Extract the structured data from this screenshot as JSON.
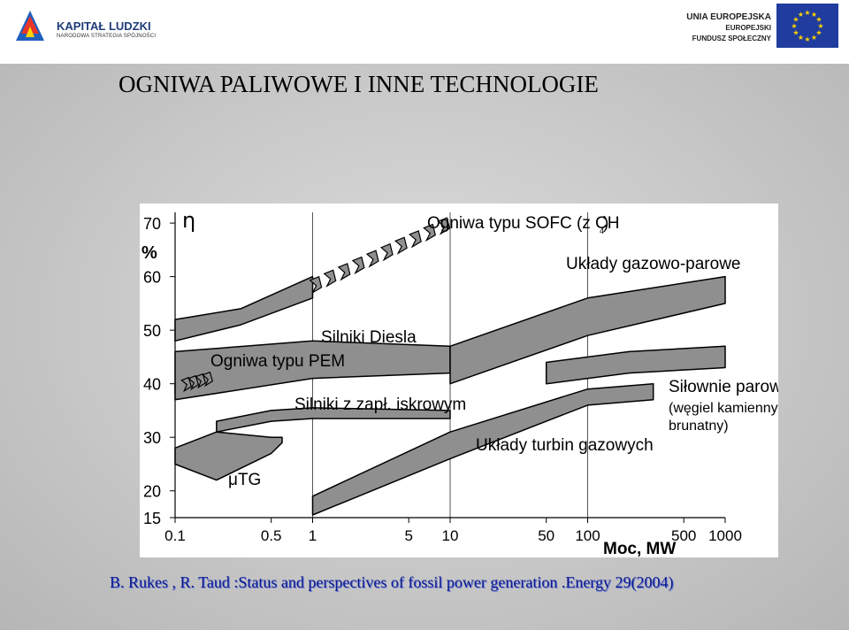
{
  "header": {
    "left_logo_title": "KAPITAŁ LUDZKI",
    "left_logo_subtitle": "NARODOWA STRATEGIA SPÓJNOŚCI",
    "right_logo_line1": "UNIA EUROPEJSKA",
    "right_logo_line2": "EUROPEJSKI",
    "right_logo_line3": "FUNDUSZ SPOŁECZNY"
  },
  "slide": {
    "title": "OGNIWA PALIWOWE I INNE TECHNOLOGIE",
    "citation": "B. Rukes , R. Taud :Status and perspectives of fossil power generation .Energy 29(2004)"
  },
  "colors": {
    "band_fill": "#8f8f8f",
    "band_stroke": "#000000",
    "eu_flag": "#1f3c9e",
    "eu_star": "#ffd200",
    "citation_text": "#0b1a8a"
  },
  "chart_data": {
    "type": "area",
    "title": "",
    "ylabel": "η",
    "ylabel_unit": "%",
    "xlabel": "Moc, MW",
    "x_scale": "log",
    "xlim": [
      0.1,
      1000
    ],
    "ylim": [
      15,
      72
    ],
    "x_ticks": [
      0.1,
      0.5,
      1,
      5,
      10,
      50,
      100,
      500,
      1000
    ],
    "x_tick_labels": [
      "0.1",
      "0.5",
      "1",
      "5",
      "10",
      "50",
      "100",
      "500",
      "1000"
    ],
    "y_ticks": [
      15,
      20,
      30,
      40,
      50,
      60,
      70
    ],
    "y_tick_labels": [
      "15",
      "20",
      "30",
      "40",
      "50",
      "60",
      "70"
    ],
    "grid": "vertical lines at 1, 10, 100",
    "series": [
      {
        "name": "Ogniwa typu SOFC (z CH4)",
        "upper": [
          [
            0.1,
            52
          ],
          [
            0.3,
            54
          ],
          [
            1,
            60
          ]
        ],
        "lower": [
          [
            0.1,
            48
          ],
          [
            0.3,
            51
          ],
          [
            1,
            56
          ]
        ],
        "projection": "chevrons from 1 to 10 MW, rising to ~70%"
      },
      {
        "name": "Ogniwa typu PEM",
        "upper": [
          [
            0.1,
            40
          ],
          [
            0.2,
            41
          ]
        ],
        "lower": [
          [
            0.1,
            38
          ],
          [
            0.2,
            39
          ]
        ],
        "projection": "chevrons near 0.15–0.25 MW at ~40%"
      },
      {
        "name": "Silniki Diesla",
        "upper": [
          [
            0.1,
            46
          ],
          [
            1,
            48
          ],
          [
            10,
            47
          ]
        ],
        "lower": [
          [
            0.1,
            37
          ],
          [
            1,
            41
          ],
          [
            10,
            42
          ]
        ]
      },
      {
        "name": "Silniki z zapł. iskrowym",
        "upper": [
          [
            0.2,
            33
          ],
          [
            0.5,
            35
          ],
          [
            1,
            35.5
          ],
          [
            10,
            35
          ]
        ],
        "lower": [
          [
            0.2,
            31
          ],
          [
            0.5,
            33
          ],
          [
            1,
            33.5
          ],
          [
            10,
            33.5
          ]
        ]
      },
      {
        "name": "μTG",
        "upper": [
          [
            0.1,
            28
          ],
          [
            0.2,
            31
          ],
          [
            0.5,
            30
          ],
          [
            0.6,
            30
          ]
        ],
        "lower": [
          [
            0.1,
            25
          ],
          [
            0.2,
            22
          ],
          [
            0.5,
            27
          ],
          [
            0.6,
            29
          ]
        ]
      },
      {
        "name": "Układy turbin gazowych",
        "upper": [
          [
            1,
            19
          ],
          [
            10,
            31
          ],
          [
            100,
            39
          ],
          [
            300,
            40
          ]
        ],
        "lower": [
          [
            1,
            15.5
          ],
          [
            10,
            26
          ],
          [
            100,
            36
          ],
          [
            300,
            37
          ]
        ]
      },
      {
        "name": "Układy gazowo-parowe",
        "upper": [
          [
            10,
            47
          ],
          [
            100,
            56
          ],
          [
            1000,
            60
          ]
        ],
        "lower": [
          [
            10,
            40
          ],
          [
            100,
            49
          ],
          [
            1000,
            55
          ]
        ]
      },
      {
        "name": "Siłownie parowe (węgiel kamienny i brunatny)",
        "upper": [
          [
            50,
            44
          ],
          [
            200,
            46
          ],
          [
            1000,
            47
          ]
        ],
        "lower": [
          [
            50,
            40
          ],
          [
            200,
            42
          ],
          [
            1000,
            43
          ]
        ]
      }
    ],
    "annotations": [
      "Ogniwa typu SOFC (z CH",
      "4",
      ")",
      "Układy gazowo-parowe",
      "Silniki Diesla",
      "Ogniwa typu PEM",
      "Silniki z zapł. iskrowym",
      "Siłownie parowe",
      "(węgiel kamienny i",
      "brunatny)",
      "Układy turbin gazowych",
      "μTG"
    ]
  }
}
